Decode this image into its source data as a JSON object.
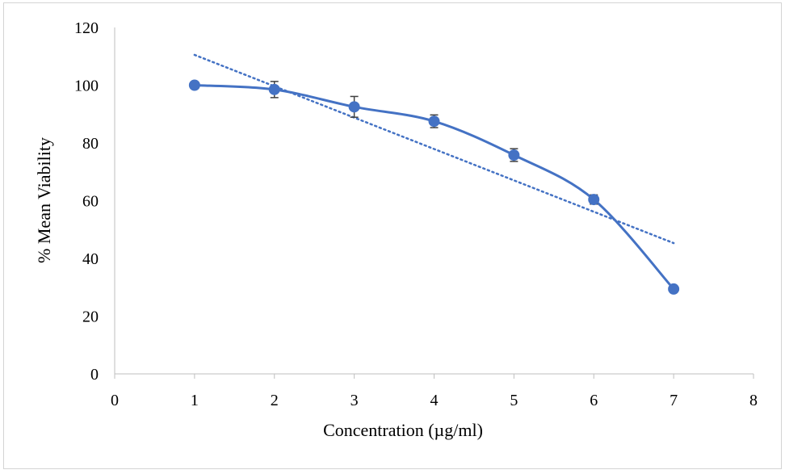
{
  "chart_data": {
    "type": "line",
    "title": "",
    "xlabel": "Concentration (µg/ml)",
    "ylabel": "% Mean Viability",
    "xlim": [
      0,
      8
    ],
    "ylim": [
      0,
      120
    ],
    "x_ticks": [
      0,
      1,
      2,
      3,
      4,
      5,
      6,
      7,
      8
    ],
    "y_ticks": [
      0,
      20,
      40,
      60,
      80,
      100,
      120
    ],
    "grid": false,
    "legend": "none",
    "series": [
      {
        "x": [
          1,
          2,
          3,
          4,
          5,
          6,
          7
        ],
        "y": [
          100,
          98.5,
          92.5,
          87.5,
          75.8,
          60.4,
          29.4
        ],
        "error": [
          0,
          2.8,
          3.6,
          2.2,
          2.2,
          1.6,
          0
        ],
        "smoothed": true,
        "marker": "circle",
        "color": "#4472c4"
      }
    ],
    "trendline": {
      "type": "linear",
      "style": "dotted",
      "color": "#4472c4",
      "x": [
        1,
        7
      ],
      "y": [
        110.5,
        45.3
      ]
    }
  }
}
